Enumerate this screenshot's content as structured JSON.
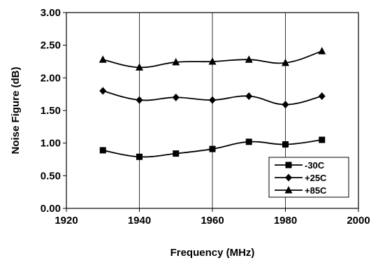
{
  "chart_data": {
    "type": "line",
    "title": "",
    "xlabel": "Frequency (MHz)",
    "ylabel": "Noise Figure (dB)",
    "xlim": [
      1920,
      2000
    ],
    "ylim": [
      0,
      3
    ],
    "xticks": [
      "1920",
      "1940",
      "1960",
      "1980",
      "2000"
    ],
    "yticks": [
      "0.00",
      "0.50",
      "1.00",
      "1.50",
      "2.00",
      "2.50",
      "3.00"
    ],
    "grid": "vertical",
    "legend_position": "bottom-right",
    "series": [
      {
        "name": "-30C",
        "marker": "square",
        "color": "#000000",
        "x": [
          1930,
          1940,
          1950,
          1960,
          1970,
          1980,
          1990
        ],
        "y": [
          0.89,
          0.79,
          0.84,
          0.91,
          1.02,
          0.98,
          1.05
        ]
      },
      {
        "name": "+25C",
        "marker": "diamond",
        "color": "#000000",
        "x": [
          1930,
          1940,
          1950,
          1960,
          1970,
          1980,
          1990
        ],
        "y": [
          1.8,
          1.66,
          1.7,
          1.66,
          1.72,
          1.59,
          1.72
        ]
      },
      {
        "name": "+85C",
        "marker": "triangle",
        "color": "#000000",
        "x": [
          1930,
          1940,
          1950,
          1960,
          1970,
          1980,
          1990
        ],
        "y": [
          2.28,
          2.16,
          2.24,
          2.25,
          2.28,
          2.23,
          2.41
        ]
      }
    ]
  }
}
